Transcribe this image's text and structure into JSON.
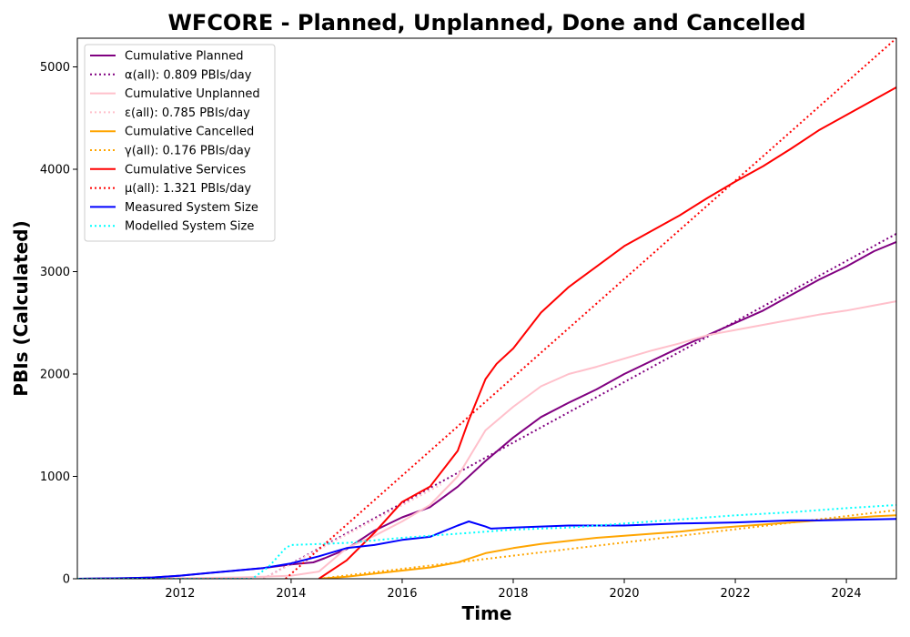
{
  "chart_data": {
    "type": "line",
    "title": "WFCORE - Planned, Unplanned, Done  and Cancelled",
    "xlabel": "Time",
    "ylabel": "PBIs (Calculated)",
    "xlim": [
      2010.15,
      2024.9
    ],
    "ylim": [
      0,
      5280
    ],
    "x_ticks": [
      2012,
      2014,
      2016,
      2018,
      2020,
      2022,
      2024
    ],
    "y_ticks": [
      0,
      1000,
      2000,
      3000,
      4000,
      5000
    ],
    "grid": false,
    "legend_position": "upper-left",
    "series": [
      {
        "name": "Cumulative Planned",
        "color": "#800080",
        "style": "solid",
        "x": [
          2010.15,
          2011,
          2011.5,
          2012,
          2012.5,
          2013,
          2013.5,
          2014,
          2014.4,
          2014.6,
          2015,
          2015.5,
          2016,
          2016.5,
          2017,
          2017.5,
          2018,
          2018.5,
          2019,
          2019.5,
          2020,
          2020.5,
          2021,
          2021.5,
          2022,
          2022.5,
          2023,
          2023.5,
          2024,
          2024.5,
          2024.9
        ],
        "y": [
          0,
          5,
          12,
          30,
          55,
          80,
          105,
          140,
          160,
          200,
          290,
          470,
          600,
          700,
          900,
          1150,
          1380,
          1580,
          1720,
          1850,
          2000,
          2130,
          2260,
          2380,
          2500,
          2620,
          2770,
          2920,
          3050,
          3200,
          3290
        ]
      },
      {
        "name": "α(all): 0.809 PBIs/day",
        "color": "#800080",
        "style": "dotted",
        "x": [
          2013.5,
          2024.9
        ],
        "y": [
          0,
          3370
        ]
      },
      {
        "name": "Cumulative Unplanned",
        "color": "#ffc0cb",
        "style": "solid",
        "x": [
          2010.15,
          2012,
          2013,
          2013.5,
          2014,
          2014.5,
          2015,
          2015.5,
          2016,
          2016.5,
          2017,
          2017.5,
          2018,
          2018.5,
          2019,
          2019.5,
          2020,
          2020.5,
          2021,
          2021.5,
          2022,
          2022.5,
          2023,
          2023.5,
          2024,
          2024.5,
          2024.9
        ],
        "y": [
          0,
          5,
          12,
          20,
          30,
          70,
          300,
          420,
          560,
          720,
          1000,
          1450,
          1680,
          1880,
          2000,
          2070,
          2150,
          2230,
          2300,
          2380,
          2430,
          2480,
          2530,
          2580,
          2620,
          2670,
          2710
        ]
      },
      {
        "name": "ε(all): 0.785 PBIs/day",
        "color": "#ffc0cb",
        "style": "dotted",
        "x": [
          2013.5,
          2016.7
        ],
        "y": [
          0,
          920
        ]
      },
      {
        "name": "Cumulative Cancelled",
        "color": "#ffa500",
        "style": "solid",
        "x": [
          2014.5,
          2015,
          2015.5,
          2016,
          2016.5,
          2017,
          2017.5,
          2018,
          2018.5,
          2019,
          2019.5,
          2020,
          2020.5,
          2021,
          2021.5,
          2022,
          2022.5,
          2023,
          2023.5,
          2024,
          2024.5,
          2024.9
        ],
        "y": [
          0,
          20,
          50,
          80,
          110,
          160,
          250,
          300,
          340,
          370,
          400,
          420,
          440,
          460,
          490,
          510,
          530,
          550,
          570,
          590,
          610,
          620
        ]
      },
      {
        "name": "γ(all): 0.176 PBIs/day",
        "color": "#ffa500",
        "style": "dotted",
        "x": [
          2014.5,
          2024.9
        ],
        "y": [
          0,
          670
        ]
      },
      {
        "name": "Cumulative Services",
        "color": "#ff0000",
        "style": "solid",
        "x": [
          2014.5,
          2015,
          2015.5,
          2016,
          2016.5,
          2017,
          2017.2,
          2017.5,
          2017.7,
          2018,
          2018.5,
          2019,
          2019.5,
          2020,
          2020.5,
          2021,
          2021.5,
          2022,
          2022.5,
          2023,
          2023.5,
          2024,
          2024.5,
          2024.9
        ],
        "y": [
          0,
          180,
          450,
          750,
          900,
          1250,
          1550,
          1950,
          2100,
          2250,
          2600,
          2850,
          3050,
          3250,
          3400,
          3550,
          3720,
          3880,
          4030,
          4200,
          4380,
          4530,
          4680,
          4800
        ]
      },
      {
        "name": "μ(all): 1.321 PBIs/day",
        "color": "#ff0000",
        "style": "dotted",
        "x": [
          2013.9,
          2024.9
        ],
        "y": [
          0,
          5280
        ]
      },
      {
        "name": "Measured System Size",
        "color": "#0000ff",
        "style": "solid",
        "x": [
          2010.15,
          2011,
          2011.5,
          2012,
          2012.5,
          2013,
          2013.5,
          2014,
          2014.5,
          2015,
          2015.5,
          2016,
          2016.5,
          2017,
          2017.2,
          2017.5,
          2017.6,
          2018,
          2018.5,
          2019,
          2019.5,
          2020,
          2020.5,
          2021,
          2021.5,
          2022,
          2022.5,
          2023,
          2023.5,
          2024,
          2024.5,
          2024.9
        ],
        "y": [
          0,
          5,
          12,
          30,
          55,
          80,
          105,
          150,
          220,
          300,
          330,
          380,
          410,
          520,
          560,
          510,
          490,
          500,
          510,
          520,
          520,
          520,
          530,
          540,
          545,
          550,
          560,
          570,
          570,
          575,
          580,
          585
        ]
      },
      {
        "name": "Modelled System Size",
        "color": "#00ffff",
        "style": "dotted",
        "x": [
          2010.15,
          2013.3,
          2013.6,
          2013.9,
          2014,
          2014.5,
          2015,
          2016,
          2017,
          2018,
          2019,
          2020,
          2021,
          2022,
          2023,
          2024,
          2024.9
        ],
        "y": [
          0,
          0,
          120,
          300,
          330,
          340,
          350,
          400,
          440,
          480,
          500,
          540,
          580,
          620,
          650,
          690,
          720
        ]
      }
    ]
  }
}
